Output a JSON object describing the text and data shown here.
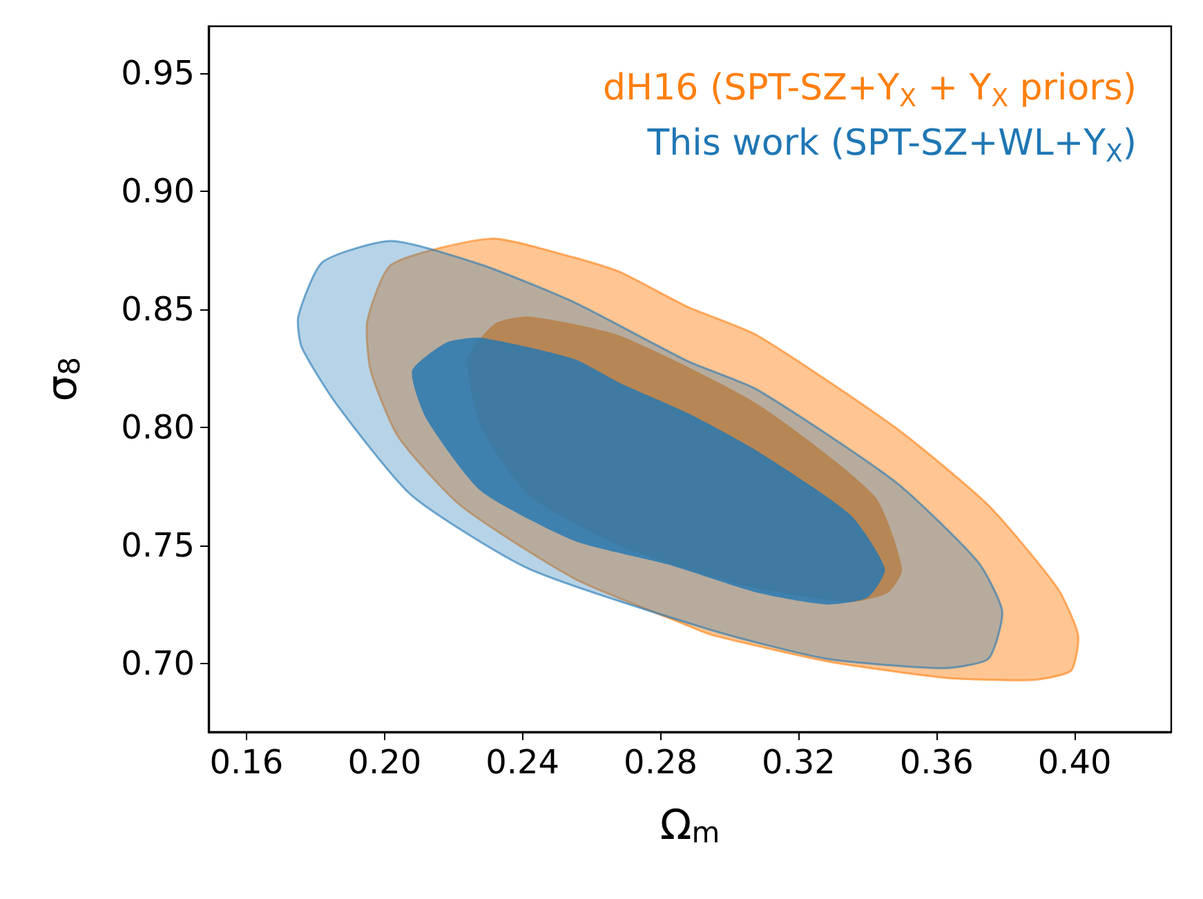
{
  "chart_data": {
    "type": "area",
    "xlabel": "Ω$_{m}$",
    "ylabel": "σ$_{8}$",
    "xlim": [
      0.149,
      0.428
    ],
    "ylim": [
      0.671,
      0.97
    ],
    "xticks": [
      {
        "value": 0.16,
        "label": "0.16"
      },
      {
        "value": 0.2,
        "label": "0.20"
      },
      {
        "value": 0.24,
        "label": "0.24"
      },
      {
        "value": 0.28,
        "label": "0.28"
      },
      {
        "value": 0.32,
        "label": "0.32"
      },
      {
        "value": 0.36,
        "label": "0.36"
      },
      {
        "value": 0.4,
        "label": "0.40"
      }
    ],
    "yticks": [
      {
        "value": 0.7,
        "label": "0.70"
      },
      {
        "value": 0.75,
        "label": "0.75"
      },
      {
        "value": 0.8,
        "label": "0.80"
      },
      {
        "value": 0.85,
        "label": "0.85"
      },
      {
        "value": 0.9,
        "label": "0.90"
      },
      {
        "value": 0.95,
        "label": "0.95"
      }
    ],
    "grid": false,
    "series": [
      {
        "name": "dH16 (SPT-SZ+Y$_{X}$ + Y$_{X}$ priors)",
        "color": "#ff7f0e",
        "x": [
          0.195,
          0.202,
          0.231,
          0.255,
          0.268,
          0.288,
          0.308,
          0.348,
          0.375,
          0.395,
          0.401,
          0.399,
          0.388,
          0.362,
          0.328,
          0.295,
          0.288,
          0.255,
          0.222,
          0.204,
          0.196
        ],
        "values": [
          0.845,
          0.869,
          0.88,
          0.872,
          0.866,
          0.851,
          0.839,
          0.8,
          0.767,
          0.732,
          0.712,
          0.697,
          0.693,
          0.694,
          0.701,
          0.712,
          0.716,
          0.736,
          0.767,
          0.796,
          0.824
        ]
      },
      {
        "color": "#ff7f0e",
        "x": [
          0.224,
          0.232,
          0.242,
          0.268,
          0.308,
          0.342,
          0.35,
          0.346,
          0.335,
          0.304,
          0.268,
          0.242,
          0.228
        ],
        "values": [
          0.829,
          0.844,
          0.847,
          0.839,
          0.81,
          0.771,
          0.74,
          0.73,
          0.726,
          0.733,
          0.75,
          0.771,
          0.8
        ]
      },
      {
        "name": "This work (SPT-SZ+WL+Y$_{X}$)",
        "color": "#1f77b4",
        "x": [
          0.175,
          0.182,
          0.202,
          0.228,
          0.255,
          0.288,
          0.308,
          0.348,
          0.372,
          0.379,
          0.375,
          0.362,
          0.328,
          0.295,
          0.242,
          0.208,
          0.186,
          0.176
        ],
        "values": [
          0.847,
          0.87,
          0.879,
          0.869,
          0.853,
          0.828,
          0.816,
          0.777,
          0.743,
          0.722,
          0.702,
          0.698,
          0.702,
          0.714,
          0.74,
          0.771,
          0.81,
          0.834
        ]
      },
      {
        "color": "#1f77b4",
        "x": [
          0.208,
          0.218,
          0.228,
          0.255,
          0.268,
          0.288,
          0.308,
          0.335,
          0.345,
          0.34,
          0.328,
          0.308,
          0.282,
          0.255,
          0.228,
          0.212
        ],
        "values": [
          0.824,
          0.836,
          0.838,
          0.829,
          0.819,
          0.806,
          0.79,
          0.763,
          0.74,
          0.728,
          0.725,
          0.73,
          0.742,
          0.752,
          0.773,
          0.804
        ]
      }
    ]
  }
}
